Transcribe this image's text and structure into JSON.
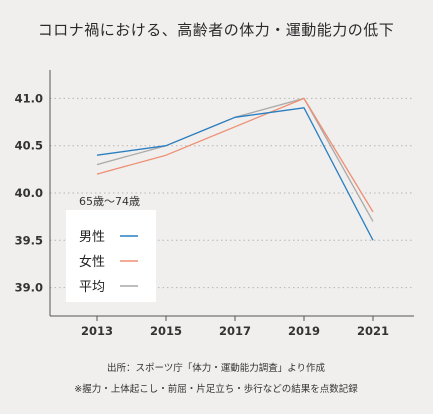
{
  "chart_data": {
    "type": "line",
    "title": "コロナ禍における、高齢者の体力・運動能力の低下",
    "subtitle": "65歳〜74歳",
    "x": [
      "2013",
      "2015",
      "2017",
      "2019",
      "2021"
    ],
    "ylim": [
      38.7,
      41.3
    ],
    "yticks": [
      "41.0",
      "40.5",
      "40.0",
      "39.5",
      "39.0"
    ],
    "series": [
      {
        "name": "男性",
        "color": "#2a7fc1",
        "values": [
          40.4,
          40.5,
          40.8,
          40.9,
          39.5
        ]
      },
      {
        "name": "女性",
        "color": "#ee8f73",
        "values": [
          40.2,
          40.4,
          40.7,
          41.0,
          39.8
        ]
      },
      {
        "name": "平均",
        "color": "#a9a9a9",
        "values": [
          40.3,
          40.5,
          40.8,
          41.0,
          39.7
        ]
      }
    ],
    "grid": "horizontal-dotted",
    "legend_position": "bottom-left"
  },
  "footnotes": {
    "source": "出所：スポーツ庁「体力・運動能力調査」より作成",
    "note": "※握力・上体起こし・前屈・片足立ち・歩行などの結果を点数記録"
  }
}
